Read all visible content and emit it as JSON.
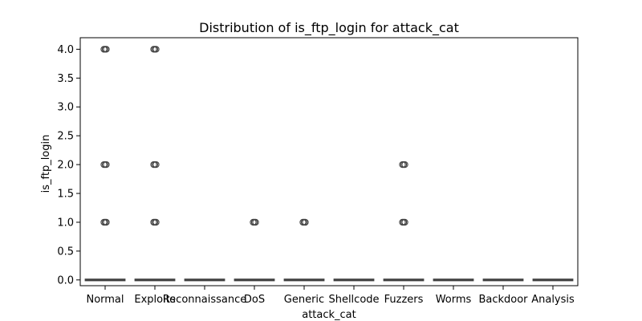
{
  "chart_data": {
    "type": "box",
    "title": "Distribution of is_ftp_login for attack_cat",
    "xlabel": "attack_cat",
    "ylabel": "is_ftp_login",
    "ylim": [
      -0.1,
      4.2
    ],
    "yticks": [
      0.0,
      0.5,
      1.0,
      1.5,
      2.0,
      2.5,
      3.0,
      3.5,
      4.0
    ],
    "ytick_labels": [
      "0.0",
      "0.5",
      "1.0",
      "1.5",
      "2.0",
      "2.5",
      "3.0",
      "3.5",
      "4.0"
    ],
    "grid": false,
    "categories": [
      "Normal",
      "Exploits",
      "Reconnaissance",
      "DoS",
      "Generic",
      "Shellcode",
      "Fuzzers",
      "Worms",
      "Backdoor",
      "Analysis"
    ],
    "boxes": [
      {
        "category": "Normal",
        "q1": 0,
        "median": 0,
        "q3": 0,
        "whisker_low": 0,
        "whisker_high": 0,
        "outliers": [
          1,
          2,
          4
        ]
      },
      {
        "category": "Exploits",
        "q1": 0,
        "median": 0,
        "q3": 0,
        "whisker_low": 0,
        "whisker_high": 0,
        "outliers": [
          1,
          2,
          4
        ]
      },
      {
        "category": "Reconnaissance",
        "q1": 0,
        "median": 0,
        "q3": 0,
        "whisker_low": 0,
        "whisker_high": 0,
        "outliers": []
      },
      {
        "category": "DoS",
        "q1": 0,
        "median": 0,
        "q3": 0,
        "whisker_low": 0,
        "whisker_high": 0,
        "outliers": [
          1
        ]
      },
      {
        "category": "Generic",
        "q1": 0,
        "median": 0,
        "q3": 0,
        "whisker_low": 0,
        "whisker_high": 0,
        "outliers": [
          1
        ]
      },
      {
        "category": "Shellcode",
        "q1": 0,
        "median": 0,
        "q3": 0,
        "whisker_low": 0,
        "whisker_high": 0,
        "outliers": []
      },
      {
        "category": "Fuzzers",
        "q1": 0,
        "median": 0,
        "q3": 0,
        "whisker_low": 0,
        "whisker_high": 0,
        "outliers": [
          1,
          2
        ]
      },
      {
        "category": "Worms",
        "q1": 0,
        "median": 0,
        "q3": 0,
        "whisker_low": 0,
        "whisker_high": 0,
        "outliers": []
      },
      {
        "category": "Backdoor",
        "q1": 0,
        "median": 0,
        "q3": 0,
        "whisker_low": 0,
        "whisker_high": 0,
        "outliers": []
      },
      {
        "category": "Analysis",
        "q1": 0,
        "median": 0,
        "q3": 0,
        "whisker_low": 0,
        "whisker_high": 0,
        "outliers": []
      }
    ],
    "colors": {
      "box_edge": "#3f3f3f",
      "axes": "#000000",
      "background": "#ffffff"
    }
  }
}
